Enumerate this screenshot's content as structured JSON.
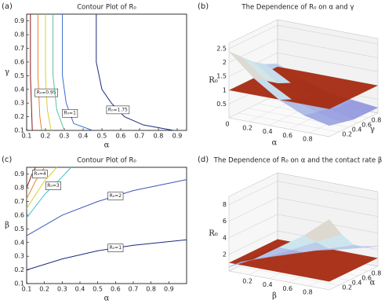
{
  "chart_data": [
    {
      "type": "contour",
      "panel_label": "(a)",
      "title": "Contour Plot of R₀",
      "x_label": "α",
      "y_label": "γ",
      "xlim": [
        0.1,
        0.95
      ],
      "ylim": [
        0.1,
        0.95
      ],
      "xticks": [
        0.1,
        0.2,
        0.3,
        0.4,
        0.5,
        0.6,
        0.7,
        0.8,
        0.9
      ],
      "yticks": [
        0.1,
        0.2,
        0.3,
        0.4,
        0.5,
        0.6,
        0.7,
        0.8,
        0.9
      ],
      "series": [
        {
          "color": "#8b1a1a",
          "x": [
            0.12,
            0.12,
            0.13
          ],
          "values": [
            0.95,
            0.5,
            0.1
          ]
        },
        {
          "color": "#e8862a",
          "x": [
            0.16,
            0.16,
            0.17,
            0.18
          ],
          "values": [
            0.95,
            0.5,
            0.2,
            0.1
          ]
        },
        {
          "color": "#d8d030",
          "x": [
            0.2,
            0.2,
            0.21,
            0.23
          ],
          "values": [
            0.95,
            0.5,
            0.25,
            0.1
          ],
          "label": "R₀=0.95"
        },
        {
          "color": "#5cc0a0",
          "x": [
            0.24,
            0.24,
            0.26,
            0.3
          ],
          "values": [
            0.95,
            0.5,
            0.25,
            0.1
          ]
        },
        {
          "color": "#3a6ad0",
          "x": [
            0.29,
            0.29,
            0.31,
            0.35,
            0.45
          ],
          "values": [
            0.95,
            0.5,
            0.3,
            0.15,
            0.1
          ],
          "label": "R₀=1"
        },
        {
          "color": "#1c2a80",
          "x": [
            0.47,
            0.47,
            0.5,
            0.55,
            0.62,
            0.72,
            0.88
          ],
          "values": [
            0.95,
            0.6,
            0.4,
            0.3,
            0.2,
            0.14,
            0.1
          ],
          "label": "R₀=1.75"
        }
      ]
    },
    {
      "type": "surface3d",
      "panel_label": "(b)",
      "title": "The Dependence of R₀ on α and γ",
      "x_label": "α",
      "y_label": "γ",
      "z_label": "R₀",
      "xlim": [
        0,
        1
      ],
      "ylim": [
        0,
        1
      ],
      "zlim": [
        0,
        2.7
      ],
      "xticks": [
        0,
        0.2,
        0.4,
        0.6,
        0.8
      ],
      "yticks": [
        0.2,
        0.4,
        0.6,
        0.8
      ],
      "zticks": [
        0.5,
        1,
        1.5,
        2,
        2.5
      ],
      "colormap": [
        "#8c8cdc",
        "#cfe9ee",
        "#f4bfa0"
      ],
      "plane_color": "#a52a10",
      "plane": 1,
      "surface": {
        "x": [
          0,
          0.25,
          0.5,
          0.75,
          1
        ],
        "y": [
          0,
          0.25,
          0.5,
          0.75,
          1
        ],
        "z": [
          [
            2.4,
            1.6,
            1.0,
            0.6,
            0.4
          ],
          [
            2.0,
            1.3,
            0.8,
            0.5,
            0.3
          ],
          [
            1.6,
            1.0,
            0.6,
            0.4,
            0.2
          ],
          [
            1.3,
            0.8,
            0.5,
            0.3,
            0.2
          ],
          [
            1.1,
            0.7,
            0.4,
            0.3,
            0.2
          ]
        ]
      }
    },
    {
      "type": "contour",
      "panel_label": "(c)",
      "title": "Contour Plot of R₀",
      "x_label": "α",
      "y_label": "β",
      "xlim": [
        0.1,
        1.0
      ],
      "ylim": [
        0.1,
        0.95
      ],
      "xticks": [
        0.1,
        0.2,
        0.3,
        0.4,
        0.5,
        0.6,
        0.7,
        0.8,
        0.9
      ],
      "yticks": [
        0.1,
        0.2,
        0.3,
        0.4,
        0.5,
        0.6,
        0.7,
        0.8,
        0.9
      ],
      "series": [
        {
          "color": "#8b1a1a",
          "x": [
            0.1,
            0.13,
            0.15
          ],
          "values": [
            0.8,
            0.9,
            0.95
          ]
        },
        {
          "color": "#e8862a",
          "x": [
            0.1,
            0.15,
            0.2
          ],
          "values": [
            0.72,
            0.85,
            0.95
          ],
          "label": "R₀=4"
        },
        {
          "color": "#d8d030",
          "x": [
            0.1,
            0.2,
            0.27
          ],
          "values": [
            0.65,
            0.85,
            0.95
          ]
        },
        {
          "color": "#40c0c8",
          "x": [
            0.1,
            0.2,
            0.3,
            0.35
          ],
          "values": [
            0.58,
            0.75,
            0.88,
            0.95
          ],
          "label": "R₀=3"
        },
        {
          "color": "#3a5ab8",
          "x": [
            0.1,
            0.3,
            0.5,
            0.7,
            1.0
          ],
          "values": [
            0.45,
            0.6,
            0.7,
            0.78,
            0.86
          ],
          "label": "R₀=2"
        },
        {
          "color": "#1c2a80",
          "x": [
            0.1,
            0.3,
            0.5,
            0.7,
            1.0
          ],
          "values": [
            0.2,
            0.28,
            0.34,
            0.38,
            0.42
          ],
          "label": "R₀=1"
        }
      ]
    },
    {
      "type": "surface3d",
      "panel_label": "(d)",
      "title": "The Dependence of R₀ on α and the contact rate β",
      "x_label": "β",
      "y_label": "α",
      "z_label": "R₀",
      "xlim": [
        0,
        1
      ],
      "ylim": [
        0,
        1
      ],
      "zlim": [
        0,
        9
      ],
      "xticks": [
        0.2,
        0.4,
        0.6,
        0.8
      ],
      "yticks": [
        0.2,
        0.4,
        0.6,
        0.8
      ],
      "zticks": [
        2,
        4,
        6,
        8
      ],
      "colormap": [
        "#8c8cdc",
        "#cfe9ee",
        "#f4bfa0"
      ],
      "plane_color": "#a52a10",
      "plane": 1,
      "surface": {
        "x": [
          0,
          0.25,
          0.5,
          0.75,
          1
        ],
        "y": [
          0,
          0.25,
          0.5,
          0.75,
          1
        ],
        "z": [
          [
            0.5,
            2,
            4,
            6,
            8.5
          ],
          [
            0.4,
            1.5,
            3,
            4.5,
            6
          ],
          [
            0.3,
            1,
            2,
            3,
            4
          ],
          [
            0.2,
            0.8,
            1.5,
            2.2,
            3
          ],
          [
            0.2,
            0.6,
            1.2,
            1.8,
            2.4
          ]
        ]
      }
    }
  ]
}
